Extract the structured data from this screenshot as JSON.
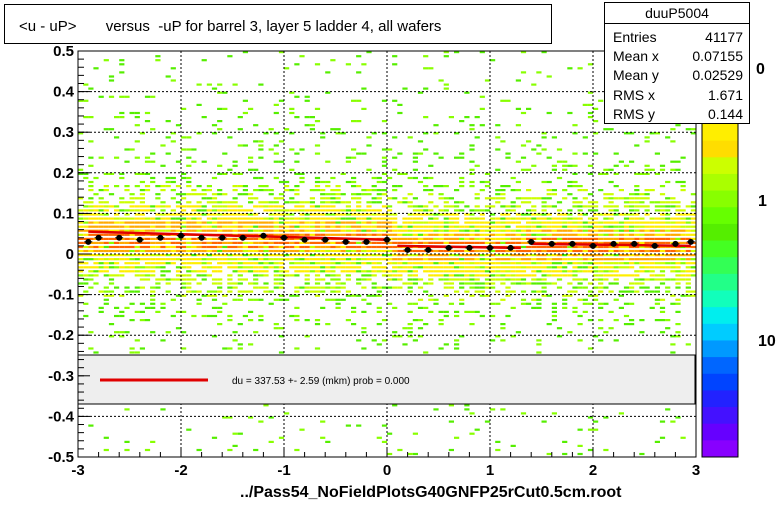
{
  "title": "<u - uP>       versus  -uP for barrel 3, layer 5 ladder 4, all wafers",
  "stats": {
    "name": "duuP5004",
    "rows": [
      {
        "label": "Entries",
        "value": "41177"
      },
      {
        "label": "Mean x",
        "value": "0.07155"
      },
      {
        "label": "Mean y",
        "value": "0.02529"
      },
      {
        "label": "RMS x",
        "value": "1.671"
      },
      {
        "label": "RMS y",
        "value": "0.144"
      }
    ]
  },
  "legend_text": "du =  337.53 +-  2.59 (mkm) prob = 0.000",
  "footer": "../Pass54_NoFieldPlotsG40GNFP25rCut0.5cm.root",
  "colorbar_labels": [
    "1",
    "10"
  ],
  "colorbar_partial_label": "0",
  "chart_data": {
    "type": "heatmap",
    "xlim": [
      -3,
      3
    ],
    "ylim": [
      -0.5,
      0.5
    ],
    "x_ticks": [
      "-3",
      "-2",
      "-1",
      "0",
      "1",
      "2",
      "3"
    ],
    "y_ticks": [
      "-0.5",
      "-0.4",
      "-0.3",
      "-0.2",
      "-0.1",
      "0",
      "0.1",
      "0.2",
      "0.3",
      "0.4",
      "0.5"
    ],
    "grid": true,
    "colorbar": "log",
    "profile_means": {
      "x": [
        -2.9,
        -2.8,
        -2.6,
        -2.4,
        -2.2,
        -2.0,
        -1.8,
        -1.6,
        -1.4,
        -1.2,
        -1.0,
        -0.8,
        -0.6,
        -0.4,
        -0.2,
        0.0,
        0.2,
        0.4,
        0.6,
        0.8,
        1.0,
        1.2,
        1.4,
        1.6,
        1.8,
        2.0,
        2.2,
        2.4,
        2.6,
        2.8,
        2.95
      ],
      "y": [
        0.03,
        0.04,
        0.04,
        0.035,
        0.04,
        0.045,
        0.04,
        0.04,
        0.04,
        0.045,
        0.04,
        0.035,
        0.035,
        0.03,
        0.03,
        0.035,
        0.01,
        0.01,
        0.015,
        0.015,
        0.015,
        0.015,
        0.03,
        0.025,
        0.025,
        0.02,
        0.025,
        0.025,
        0.02,
        0.025,
        0.03
      ]
    },
    "fit_line": {
      "segments": [
        {
          "x": [
            -2.9,
            0.0
          ],
          "y": [
            0.055,
            0.035
          ]
        },
        {
          "x": [
            0.1,
            1.3
          ],
          "y": [
            0.02,
            0.015
          ]
        },
        {
          "x": [
            1.4,
            2.95
          ],
          "y": [
            0.025,
            0.02
          ]
        }
      ]
    }
  }
}
